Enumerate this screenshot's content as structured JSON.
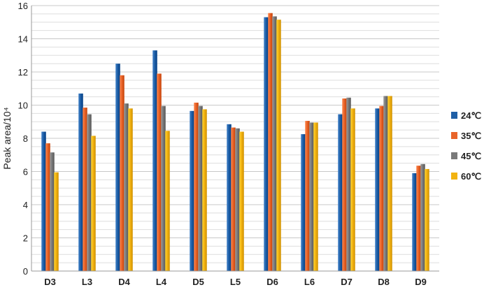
{
  "chart_data": {
    "type": "bar",
    "title": "",
    "xlabel": "",
    "ylabel": "Peak area/10⁴",
    "ylim": [
      0,
      16
    ],
    "yticks": [
      0,
      2,
      4,
      6,
      8,
      10,
      12,
      14,
      16
    ],
    "grid": true,
    "legend_position": "right",
    "categories": [
      "D3",
      "L3",
      "D4",
      "L4",
      "D5",
      "L5",
      "D6",
      "L6",
      "D7",
      "D8",
      "D9"
    ],
    "series": [
      {
        "name": "24℃",
        "color": "#1f5fa6",
        "values": [
          8.4,
          10.7,
          12.5,
          13.3,
          9.65,
          8.85,
          15.3,
          8.25,
          9.45,
          9.8,
          5.9
        ]
      },
      {
        "name": "35℃",
        "color": "#e8642a",
        "values": [
          7.7,
          9.85,
          11.8,
          11.9,
          10.15,
          8.65,
          15.55,
          9.05,
          10.4,
          9.95,
          6.35
        ]
      },
      {
        "name": "45℃",
        "color": "#7a7a7a",
        "values": [
          7.15,
          9.45,
          10.1,
          9.95,
          9.95,
          8.6,
          15.35,
          8.95,
          10.45,
          10.55,
          6.45
        ]
      },
      {
        "name": "60℃",
        "color": "#f2b311",
        "values": [
          5.95,
          8.15,
          9.8,
          8.45,
          9.75,
          8.4,
          15.15,
          8.95,
          9.8,
          10.55,
          6.15
        ]
      }
    ]
  }
}
